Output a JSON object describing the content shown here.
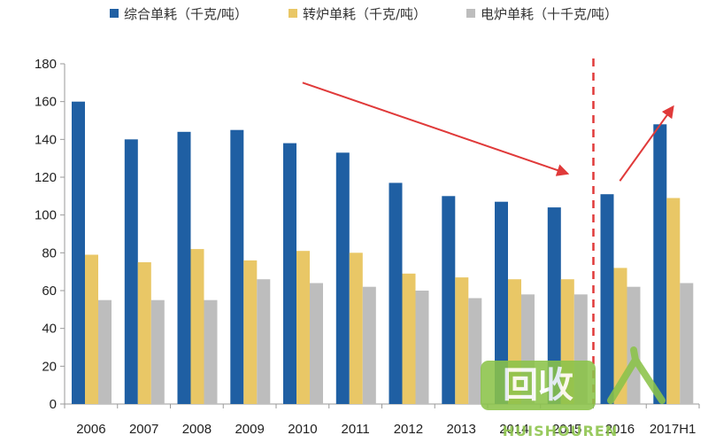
{
  "chart_data": {
    "type": "bar",
    "categories": [
      "2006",
      "2007",
      "2008",
      "2009",
      "2010",
      "2011",
      "2012",
      "2013",
      "2014",
      "2015",
      "2016",
      "2017H1"
    ],
    "series": [
      {
        "name": "综合单耗（千克/吨）",
        "values": [
          160,
          140,
          144,
          145,
          138,
          133,
          117,
          110,
          107,
          104,
          111,
          148
        ]
      },
      {
        "name": "转炉单耗（千克/吨）",
        "values": [
          79,
          75,
          82,
          76,
          81,
          80,
          69,
          67,
          66,
          66,
          72,
          109
        ]
      },
      {
        "name": "电炉单耗（十千克/吨）",
        "values": [
          55,
          55,
          55,
          66,
          64,
          62,
          60,
          56,
          58,
          58,
          62,
          64
        ]
      }
    ],
    "y_ticks": [
      "0",
      "20",
      "40",
      "60",
      "80",
      "100",
      "120",
      "140",
      "160",
      "180"
    ],
    "ylim": [
      0,
      180
    ],
    "grid": false,
    "legend_position": "top",
    "colors": [
      "#1F5FA3",
      "#E9C766",
      "#BDBDBD"
    ],
    "annotations": [
      {
        "type": "arrow",
        "color": "#E03A3A",
        "from": {
          "x": "2010",
          "y": 170
        },
        "to": {
          "x": "2015",
          "y": 122
        }
      },
      {
        "type": "dashed-vline",
        "color": "#E03A3A",
        "between": [
          "2015",
          "2016"
        ]
      },
      {
        "type": "arrow",
        "color": "#E03A3A",
        "from": {
          "x": "2016",
          "y": 118
        },
        "to": {
          "x": "2017H1",
          "y": 157
        }
      }
    ]
  },
  "watermark": {
    "logo_text": "回收",
    "sub_text": "HUISHOUREN",
    "colors": [
      "#8BC34A",
      "#ffffff"
    ]
  }
}
